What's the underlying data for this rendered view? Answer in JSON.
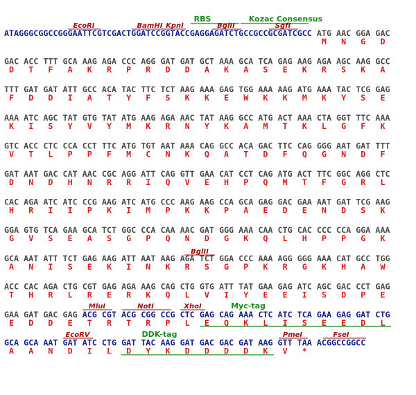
{
  "labels": {
    "rbs": "RBS",
    "kozak": "Kozac Consensus",
    "ecori": "EcoRI",
    "bamhi": "BamHI",
    "kpni": "KpnI",
    "bglii_1": "BglII",
    "sgfi": "SgfI",
    "bglii_2": "BglII",
    "mlui": "MluI",
    "noti": "NotI",
    "xhoi": "XhoI",
    "myc": "Myc-tag",
    "ecorv": "EcoRV",
    "ddk": "DDK-tag",
    "pmei": "PmeI",
    "fsei": "FseI"
  },
  "sequence": {
    "leader": "ATAGGGCGGCCGGGAATTCGTCGACTGGATCCGGTACCGAGGAGATCTGCCGCCGCGATCGCC",
    "rows": [
      {
        "codons": [
          "ATG",
          "AAC",
          "GGA",
          "GAC"
        ],
        "aa": [
          "M",
          "N",
          "G",
          "D"
        ]
      },
      {
        "codons": [
          "GAC",
          "ACC",
          "TTT",
          "GCA",
          "AAG",
          "AGA",
          "CCC",
          "AGG",
          "GAT",
          "GAT",
          "GCT",
          "AAA",
          "GCA",
          "TCA",
          "GAG",
          "AAG",
          "AGA",
          "AGC",
          "AAG",
          "GCC"
        ],
        "aa": [
          "D",
          "T",
          "F",
          "A",
          "K",
          "R",
          "P",
          "R",
          "D",
          "D",
          "A",
          "K",
          "A",
          "S",
          "E",
          "K",
          "R",
          "S",
          "K",
          "A"
        ]
      },
      {
        "codons": [
          "TTT",
          "GAT",
          "GAT",
          "ATT",
          "GCC",
          "ACA",
          "TAC",
          "TTC",
          "TCT",
          "AAG",
          "AAA",
          "GAG",
          "TGG",
          "AAA",
          "AAG",
          "ATG",
          "AAA",
          "TAC",
          "TCG",
          "GAG"
        ],
        "aa": [
          "F",
          "D",
          "D",
          "I",
          "A",
          "T",
          "Y",
          "F",
          "S",
          "K",
          "K",
          "E",
          "W",
          "K",
          "K",
          "M",
          "K",
          "Y",
          "S",
          "E"
        ]
      },
      {
        "codons": [
          "AAA",
          "ATC",
          "AGC",
          "TAT",
          "GTG",
          "TAT",
          "ATG",
          "AAG",
          "AGA",
          "AAC",
          "TAT",
          "AAG",
          "GCC",
          "ATG",
          "ACT",
          "AAA",
          "CTA",
          "GGT",
          "TTC",
          "AAA"
        ],
        "aa": [
          "K",
          "I",
          "S",
          "Y",
          "V",
          "Y",
          "M",
          "K",
          "R",
          "N",
          "Y",
          "K",
          "A",
          "M",
          "T",
          "K",
          "L",
          "G",
          "F",
          "K"
        ]
      },
      {
        "codons": [
          "GTC",
          "ACC",
          "CTC",
          "CCA",
          "CCT",
          "TTC",
          "ATG",
          "TGT",
          "AAT",
          "AAA",
          "CAG",
          "GCC",
          "ACA",
          "GAC",
          "TTC",
          "CAG",
          "GGG",
          "AAT",
          "GAT",
          "TTT"
        ],
        "aa": [
          "V",
          "T",
          "L",
          "P",
          "P",
          "F",
          "M",
          "C",
          "N",
          "K",
          "Q",
          "A",
          "T",
          "D",
          "F",
          "Q",
          "G",
          "N",
          "D",
          "F"
        ]
      },
      {
        "codons": [
          "GAT",
          "AAT",
          "GAC",
          "CAT",
          "AAC",
          "CGC",
          "AGG",
          "ATT",
          "CAG",
          "GTT",
          "GAA",
          "CAT",
          "CCT",
          "CAG",
          "ATG",
          "ACT",
          "TTC",
          "GGC",
          "AGG",
          "CTC"
        ],
        "aa": [
          "D",
          "N",
          "D",
          "H",
          "N",
          "R",
          "R",
          "I",
          "Q",
          "V",
          "E",
          "H",
          "P",
          "Q",
          "M",
          "T",
          "F",
          "G",
          "R",
          "L"
        ]
      },
      {
        "codons": [
          "CAC",
          "AGA",
          "ATC",
          "ATC",
          "CCG",
          "AAG",
          "ATC",
          "ATG",
          "CCC",
          "AAG",
          "AAG",
          "CCA",
          "GCA",
          "GAG",
          "GAC",
          "GAA",
          "AAT",
          "GAT",
          "TCG",
          "AAG"
        ],
        "aa": [
          "H",
          "R",
          "I",
          "I",
          "P",
          "K",
          "I",
          "M",
          "P",
          "K",
          "K",
          "P",
          "A",
          "E",
          "D",
          "E",
          "N",
          "D",
          "S",
          "K"
        ]
      },
      {
        "codons": [
          "GGA",
          "GTG",
          "TCA",
          "GAA",
          "GCA",
          "TCT",
          "GGC",
          "CCA",
          "CAA",
          "AAC",
          "GAT",
          "GGG",
          "AAA",
          "CAA",
          "CTG",
          "CAC",
          "CCC",
          "CCA",
          "GGA",
          "AAA"
        ],
        "aa": [
          "G",
          "V",
          "S",
          "E",
          "A",
          "S",
          "G",
          "P",
          "Q",
          "N",
          "D",
          "G",
          "K",
          "Q",
          "L",
          "H",
          "P",
          "P",
          "G",
          "K"
        ]
      },
      {
        "codons": [
          "GCA",
          "AAT",
          "ATT",
          "TCT",
          "GAG",
          "AAG",
          "ATT",
          "AAT",
          "AAG",
          "AGA",
          "TCT",
          "GGA",
          "CCC",
          "AAA",
          "AGG",
          "GGG",
          "AAA",
          "CAT",
          "GCC",
          "TGG"
        ],
        "aa": [
          "A",
          "N",
          "I",
          "S",
          "E",
          "K",
          "I",
          "N",
          "K",
          "R",
          "S",
          "G",
          "P",
          "K",
          "R",
          "G",
          "K",
          "H",
          "A",
          "W"
        ]
      },
      {
        "codons": [
          "ACC",
          "CAC",
          "AGA",
          "CTG",
          "CGT",
          "GAG",
          "AGA",
          "AAG",
          "CAG",
          "CTG",
          "GTG",
          "ATT",
          "TAT",
          "GAA",
          "GAG",
          "ATC",
          "AGC",
          "GAC",
          "CCT",
          "GAG"
        ],
        "aa": [
          "T",
          "H",
          "R",
          "L",
          "R",
          "E",
          "R",
          "K",
          "Q",
          "L",
          "V",
          "I",
          "Y",
          "E",
          "E",
          "I",
          "S",
          "D",
          "P",
          "E"
        ]
      },
      {
        "codons": [
          "GAA",
          "GAT",
          "GAC",
          "GAG",
          "ACG",
          "CGT",
          "ACG",
          "CGG",
          "CCG",
          "CTC",
          "GAG",
          "CAG",
          "AAA",
          "CTC",
          "ATC",
          "TCA",
          "GAA",
          "GAG",
          "GAT",
          "CTG"
        ],
        "aa": [
          "E",
          "D",
          "D",
          "E",
          "T",
          "R",
          "T",
          "R",
          "P",
          "L",
          "E",
          "Q",
          "K",
          "L",
          "I",
          "S",
          "E",
          "E",
          "D",
          "L"
        ]
      },
      {
        "codons": [
          "GCA",
          "GCA",
          "AAT",
          "GAT",
          "ATC",
          "CTG",
          "GAT",
          "TAC",
          "AAG",
          "GAT",
          "GAC",
          "GAC",
          "GAT",
          "AAG",
          "GTT",
          "TAA"
        ],
        "aa": [
          "A",
          "A",
          "N",
          "D",
          "I",
          "L",
          "D",
          "Y",
          "K",
          "D",
          "D",
          "D",
          "D",
          "K",
          "V",
          "*"
        ]
      }
    ],
    "trailer": "ACGGCCGGCC"
  }
}
